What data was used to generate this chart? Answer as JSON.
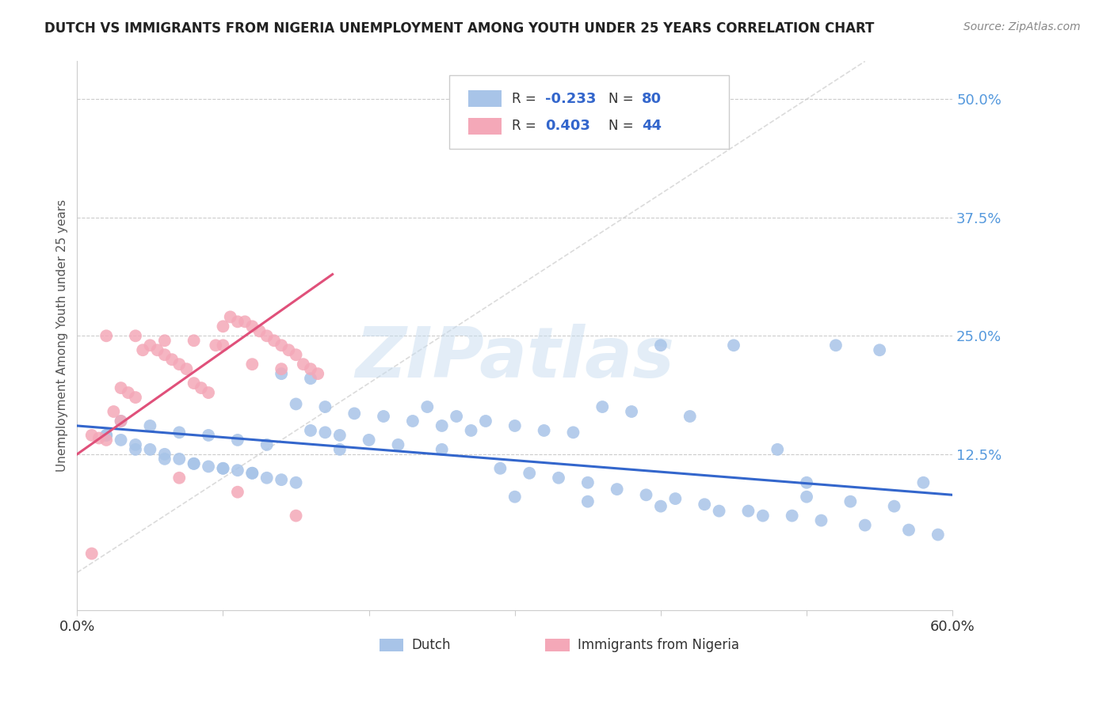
{
  "title": "DUTCH VS IMMIGRANTS FROM NIGERIA UNEMPLOYMENT AMONG YOUTH UNDER 25 YEARS CORRELATION CHART",
  "source": "Source: ZipAtlas.com",
  "ylabel": "Unemployment Among Youth under 25 years",
  "ytick_labels": [
    "50.0%",
    "37.5%",
    "25.0%",
    "12.5%"
  ],
  "ytick_values": [
    0.5,
    0.375,
    0.25,
    0.125
  ],
  "xmin": 0.0,
  "xmax": 0.6,
  "ymin": -0.04,
  "ymax": 0.54,
  "legend_dutch": "Dutch",
  "legend_nigeria": "Immigrants from Nigeria",
  "dutch_R": "-0.233",
  "dutch_N": "80",
  "nigeria_R": "0.403",
  "nigeria_N": "44",
  "dutch_color": "#a8c4e8",
  "nigeria_color": "#f4a8b8",
  "dutch_line_color": "#3366cc",
  "nigeria_line_color": "#e0507a",
  "diagonal_line_color": "#cccccc",
  "dutch_scatter_x": [
    0.02,
    0.03,
    0.04,
    0.05,
    0.06,
    0.07,
    0.08,
    0.09,
    0.1,
    0.11,
    0.12,
    0.13,
    0.14,
    0.15,
    0.16,
    0.17,
    0.18,
    0.2,
    0.22,
    0.24,
    0.26,
    0.28,
    0.3,
    0.32,
    0.34,
    0.36,
    0.38,
    0.4,
    0.42,
    0.45,
    0.48,
    0.5,
    0.52,
    0.55,
    0.58,
    0.03,
    0.05,
    0.07,
    0.09,
    0.11,
    0.13,
    0.15,
    0.17,
    0.19,
    0.21,
    0.23,
    0.25,
    0.27,
    0.29,
    0.31,
    0.33,
    0.35,
    0.37,
    0.39,
    0.41,
    0.43,
    0.46,
    0.49,
    0.51,
    0.54,
    0.57,
    0.02,
    0.04,
    0.06,
    0.08,
    0.1,
    0.12,
    0.14,
    0.16,
    0.18,
    0.25,
    0.3,
    0.35,
    0.4,
    0.44,
    0.47,
    0.5,
    0.53,
    0.56,
    0.59
  ],
  "dutch_scatter_y": [
    0.145,
    0.14,
    0.135,
    0.13,
    0.125,
    0.12,
    0.115,
    0.112,
    0.11,
    0.108,
    0.105,
    0.1,
    0.098,
    0.095,
    0.15,
    0.148,
    0.145,
    0.14,
    0.135,
    0.175,
    0.165,
    0.16,
    0.155,
    0.15,
    0.148,
    0.175,
    0.17,
    0.24,
    0.165,
    0.24,
    0.13,
    0.095,
    0.24,
    0.235,
    0.095,
    0.16,
    0.155,
    0.148,
    0.145,
    0.14,
    0.135,
    0.178,
    0.175,
    0.168,
    0.165,
    0.16,
    0.155,
    0.15,
    0.11,
    0.105,
    0.1,
    0.095,
    0.088,
    0.082,
    0.078,
    0.072,
    0.065,
    0.06,
    0.055,
    0.05,
    0.045,
    0.145,
    0.13,
    0.12,
    0.115,
    0.11,
    0.105,
    0.21,
    0.205,
    0.13,
    0.13,
    0.08,
    0.075,
    0.07,
    0.065,
    0.06,
    0.08,
    0.075,
    0.07,
    0.04
  ],
  "nigeria_scatter_x": [
    0.01,
    0.015,
    0.02,
    0.025,
    0.03,
    0.035,
    0.04,
    0.045,
    0.05,
    0.055,
    0.06,
    0.065,
    0.07,
    0.075,
    0.08,
    0.085,
    0.09,
    0.095,
    0.1,
    0.105,
    0.11,
    0.115,
    0.12,
    0.125,
    0.13,
    0.135,
    0.14,
    0.145,
    0.15,
    0.155,
    0.16,
    0.165,
    0.02,
    0.04,
    0.06,
    0.08,
    0.1,
    0.12,
    0.14,
    0.03,
    0.07,
    0.11,
    0.15,
    0.01
  ],
  "nigeria_scatter_y": [
    0.145,
    0.142,
    0.14,
    0.17,
    0.195,
    0.19,
    0.185,
    0.235,
    0.24,
    0.235,
    0.23,
    0.225,
    0.22,
    0.215,
    0.2,
    0.195,
    0.19,
    0.24,
    0.26,
    0.27,
    0.265,
    0.265,
    0.26,
    0.255,
    0.25,
    0.245,
    0.24,
    0.235,
    0.23,
    0.22,
    0.215,
    0.21,
    0.25,
    0.25,
    0.245,
    0.245,
    0.24,
    0.22,
    0.215,
    0.16,
    0.1,
    0.085,
    0.06,
    0.02
  ]
}
